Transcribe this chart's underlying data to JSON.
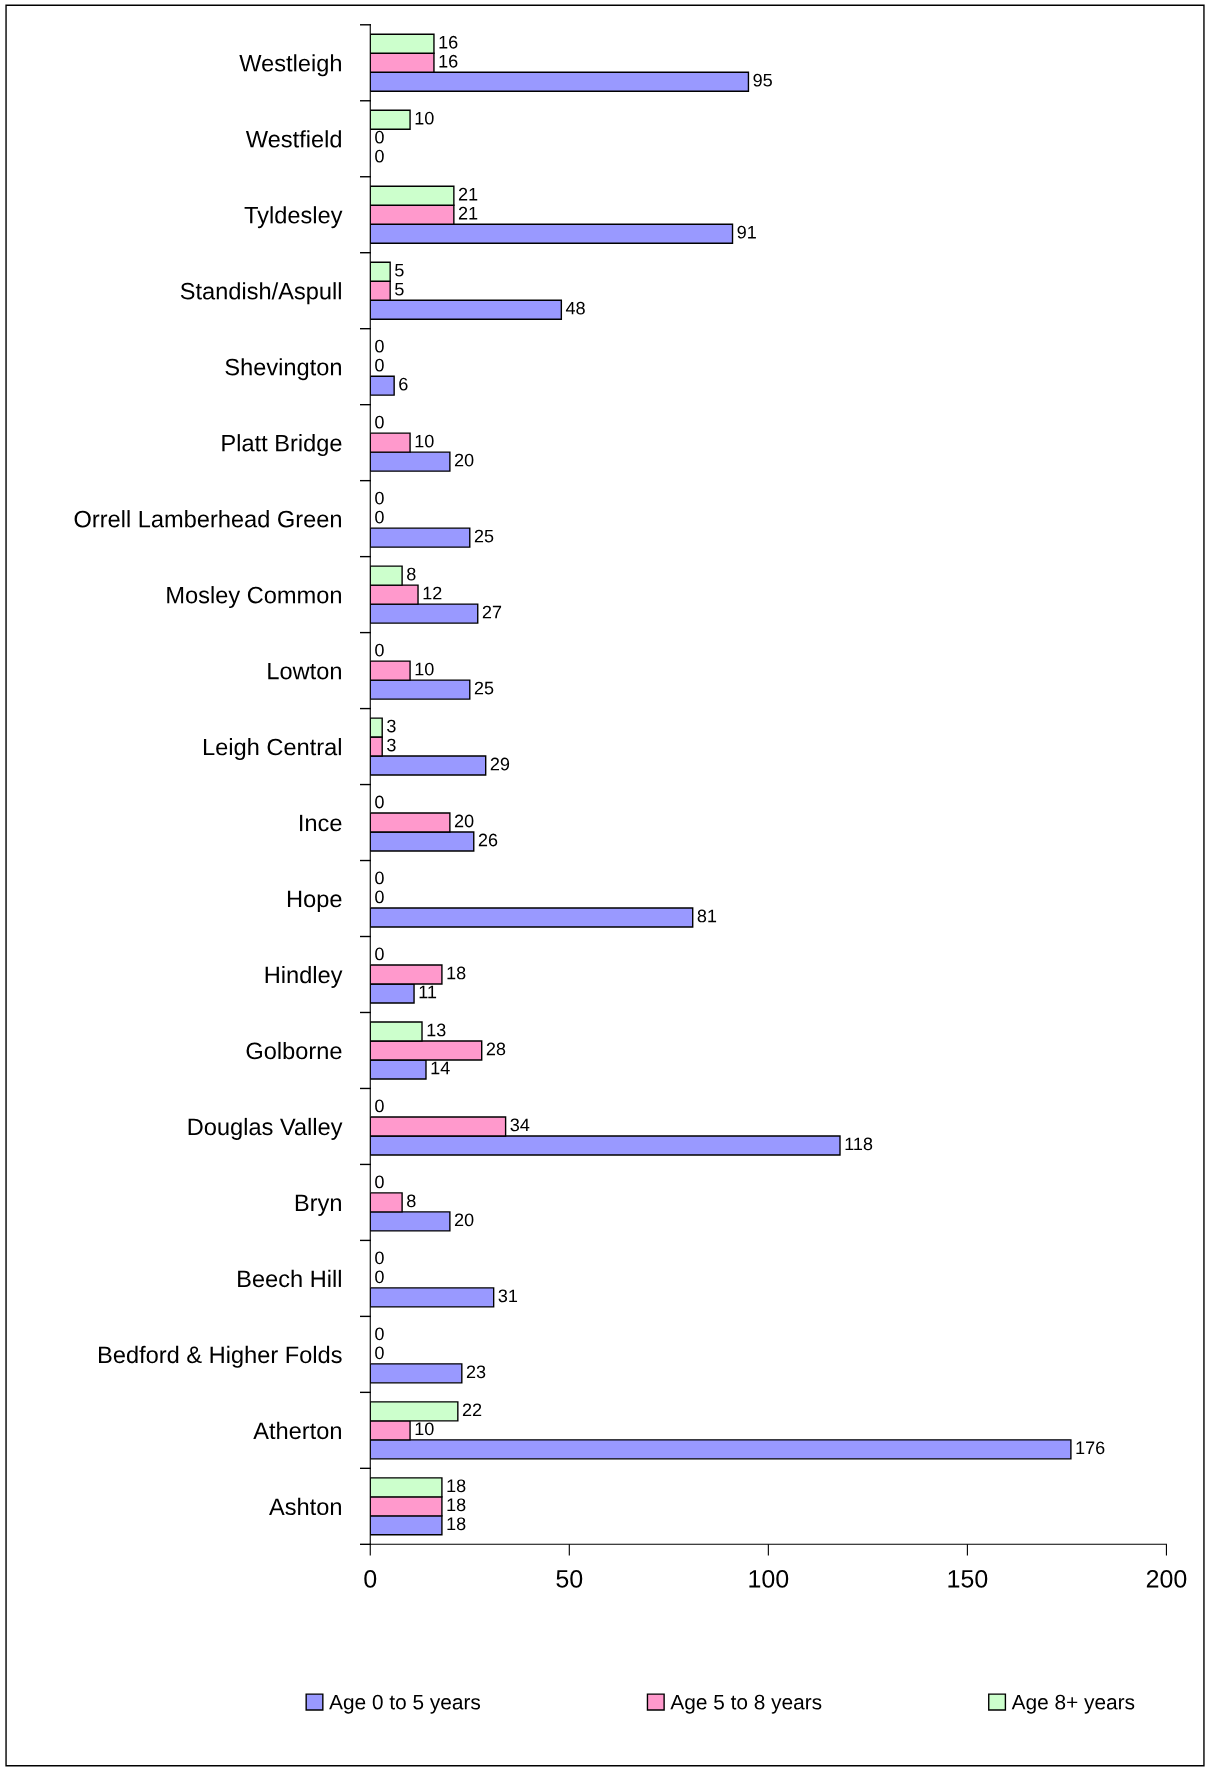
{
  "chart_data": {
    "type": "bar",
    "orientation": "horizontal",
    "categories": [
      "Westleigh",
      "Westfield",
      "Tyldesley",
      "Standish/Aspull",
      "Shevington",
      "Platt Bridge",
      "Orrell Lamberhead Green",
      "Mosley Common",
      "Lowton",
      "Leigh Central",
      "Ince",
      "Hope",
      "Hindley",
      "Golborne",
      "Douglas Valley",
      "Bryn",
      "Beech Hill",
      "Bedford & Higher Folds",
      "Atherton",
      "Ashton"
    ],
    "series": [
      {
        "name": "Age 0 to 5 years",
        "color": "#9999ff",
        "values": [
          95,
          0,
          91,
          48,
          6,
          20,
          25,
          27,
          25,
          29,
          26,
          81,
          11,
          14,
          118,
          20,
          31,
          23,
          176,
          18
        ]
      },
      {
        "name": "Age 5 to 8 years",
        "color": "#ff99cc",
        "values": [
          16,
          0,
          21,
          5,
          0,
          10,
          0,
          12,
          10,
          3,
          20,
          0,
          18,
          28,
          34,
          8,
          0,
          0,
          10,
          18
        ]
      },
      {
        "name": "Age 8+ years",
        "color": "#ccffcc",
        "values": [
          16,
          10,
          21,
          5,
          0,
          0,
          0,
          8,
          0,
          3,
          0,
          0,
          0,
          13,
          0,
          0,
          0,
          0,
          22,
          18
        ]
      }
    ],
    "xlim": [
      0,
      200
    ],
    "xticks": [
      0,
      50,
      100,
      150,
      200
    ],
    "data_labels": true,
    "grid": false,
    "legend": "bottom"
  }
}
